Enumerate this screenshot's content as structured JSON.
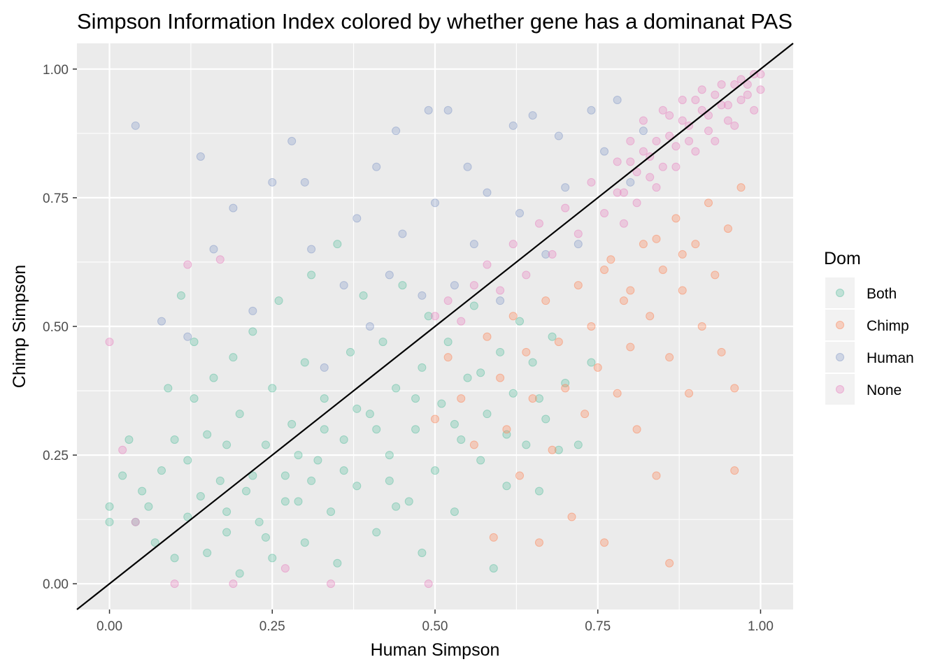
{
  "chart_data": {
    "type": "scatter",
    "title": "Simpson Information Index colored by whether gene has a dominanat PAS",
    "xlabel": "Human Simpson",
    "ylabel": "Chimp Simpson",
    "xlim": [
      -0.05,
      1.05
    ],
    "ylim": [
      -0.05,
      1.05
    ],
    "x_ticks": [
      "0.00",
      "0.25",
      "0.50",
      "0.75",
      "1.00"
    ],
    "y_ticks": [
      "0.00",
      "0.25",
      "0.50",
      "0.75",
      "1.00"
    ],
    "grid": true,
    "background": "#EBEBEB",
    "reference_line": {
      "type": "identity",
      "slope": 1,
      "intercept": 0,
      "color": "#000000"
    },
    "point_alpha": 0.35,
    "legend": {
      "title": "Dom",
      "position": "right",
      "entries": [
        {
          "name": "Both",
          "color": "#66C2A5"
        },
        {
          "name": "Chimp",
          "color": "#FC8D62"
        },
        {
          "name": "Human",
          "color": "#8DA0CB"
        },
        {
          "name": "None",
          "color": "#E78AC3"
        }
      ]
    },
    "series": [
      {
        "name": "Both",
        "color": "#66C2A5",
        "points": [
          [
            0.0,
            0.15
          ],
          [
            0.0,
            0.12
          ],
          [
            0.02,
            0.21
          ],
          [
            0.03,
            0.28
          ],
          [
            0.04,
            0.12
          ],
          [
            0.05,
            0.18
          ],
          [
            0.06,
            0.15
          ],
          [
            0.07,
            0.08
          ],
          [
            0.08,
            0.22
          ],
          [
            0.09,
            0.38
          ],
          [
            0.1,
            0.28
          ],
          [
            0.1,
            0.05
          ],
          [
            0.11,
            0.56
          ],
          [
            0.12,
            0.13
          ],
          [
            0.13,
            0.36
          ],
          [
            0.13,
            0.47
          ],
          [
            0.14,
            0.17
          ],
          [
            0.15,
            0.06
          ],
          [
            0.16,
            0.4
          ],
          [
            0.17,
            0.2
          ],
          [
            0.18,
            0.1
          ],
          [
            0.18,
            0.27
          ],
          [
            0.19,
            0.44
          ],
          [
            0.2,
            0.33
          ],
          [
            0.2,
            0.02
          ],
          [
            0.21,
            0.18
          ],
          [
            0.22,
            0.49
          ],
          [
            0.23,
            0.12
          ],
          [
            0.24,
            0.27
          ],
          [
            0.25,
            0.38
          ],
          [
            0.25,
            0.05
          ],
          [
            0.26,
            0.55
          ],
          [
            0.27,
            0.21
          ],
          [
            0.28,
            0.31
          ],
          [
            0.29,
            0.16
          ],
          [
            0.3,
            0.08
          ],
          [
            0.3,
            0.43
          ],
          [
            0.31,
            0.6
          ],
          [
            0.32,
            0.24
          ],
          [
            0.33,
            0.36
          ],
          [
            0.34,
            0.14
          ],
          [
            0.35,
            0.04
          ],
          [
            0.35,
            0.66
          ],
          [
            0.36,
            0.28
          ],
          [
            0.37,
            0.45
          ],
          [
            0.38,
            0.19
          ],
          [
            0.39,
            0.56
          ],
          [
            0.4,
            0.33
          ],
          [
            0.41,
            0.1
          ],
          [
            0.42,
            0.47
          ],
          [
            0.43,
            0.25
          ],
          [
            0.44,
            0.38
          ],
          [
            0.45,
            0.58
          ],
          [
            0.46,
            0.16
          ],
          [
            0.47,
            0.3
          ],
          [
            0.48,
            0.06
          ],
          [
            0.48,
            0.42
          ],
          [
            0.49,
            0.52
          ],
          [
            0.5,
            0.22
          ],
          [
            0.51,
            0.35
          ],
          [
            0.52,
            0.47
          ],
          [
            0.53,
            0.14
          ],
          [
            0.54,
            0.28
          ],
          [
            0.55,
            0.4
          ],
          [
            0.56,
            0.54
          ],
          [
            0.57,
            0.24
          ],
          [
            0.58,
            0.33
          ],
          [
            0.59,
            0.03
          ],
          [
            0.6,
            0.45
          ],
          [
            0.61,
            0.19
          ],
          [
            0.62,
            0.37
          ],
          [
            0.63,
            0.51
          ],
          [
            0.64,
            0.27
          ],
          [
            0.65,
            0.43
          ],
          [
            0.66,
            0.18
          ],
          [
            0.67,
            0.32
          ],
          [
            0.68,
            0.48
          ],
          [
            0.7,
            0.39
          ],
          [
            0.72,
            0.27
          ],
          [
            0.74,
            0.43
          ],
          [
            0.12,
            0.24
          ],
          [
            0.15,
            0.29
          ],
          [
            0.22,
            0.21
          ],
          [
            0.27,
            0.16
          ],
          [
            0.31,
            0.2
          ],
          [
            0.36,
            0.22
          ],
          [
            0.41,
            0.3
          ],
          [
            0.44,
            0.15
          ],
          [
            0.47,
            0.36
          ],
          [
            0.53,
            0.31
          ],
          [
            0.57,
            0.41
          ],
          [
            0.61,
            0.29
          ],
          [
            0.66,
            0.36
          ],
          [
            0.69,
            0.26
          ],
          [
            0.18,
            0.14
          ],
          [
            0.24,
            0.09
          ],
          [
            0.29,
            0.25
          ],
          [
            0.33,
            0.3
          ],
          [
            0.38,
            0.34
          ],
          [
            0.43,
            0.2
          ]
        ]
      },
      {
        "name": "Chimp",
        "color": "#FC8D62",
        "points": [
          [
            0.5,
            0.32
          ],
          [
            0.52,
            0.44
          ],
          [
            0.54,
            0.36
          ],
          [
            0.56,
            0.27
          ],
          [
            0.58,
            0.48
          ],
          [
            0.59,
            0.09
          ],
          [
            0.6,
            0.4
          ],
          [
            0.61,
            0.3
          ],
          [
            0.62,
            0.52
          ],
          [
            0.63,
            0.21
          ],
          [
            0.64,
            0.45
          ],
          [
            0.65,
            0.36
          ],
          [
            0.66,
            0.08
          ],
          [
            0.67,
            0.55
          ],
          [
            0.68,
            0.26
          ],
          [
            0.69,
            0.47
          ],
          [
            0.7,
            0.38
          ],
          [
            0.71,
            0.13
          ],
          [
            0.72,
            0.58
          ],
          [
            0.73,
            0.33
          ],
          [
            0.74,
            0.5
          ],
          [
            0.75,
            0.42
          ],
          [
            0.76,
            0.08
          ],
          [
            0.77,
            0.63
          ],
          [
            0.78,
            0.37
          ],
          [
            0.79,
            0.55
          ],
          [
            0.8,
            0.46
          ],
          [
            0.81,
            0.3
          ],
          [
            0.82,
            0.66
          ],
          [
            0.83,
            0.52
          ],
          [
            0.84,
            0.21
          ],
          [
            0.85,
            0.61
          ],
          [
            0.86,
            0.04
          ],
          [
            0.86,
            0.44
          ],
          [
            0.87,
            0.71
          ],
          [
            0.88,
            0.57
          ],
          [
            0.89,
            0.37
          ],
          [
            0.9,
            0.66
          ],
          [
            0.91,
            0.5
          ],
          [
            0.92,
            0.74
          ],
          [
            0.93,
            0.6
          ],
          [
            0.94,
            0.45
          ],
          [
            0.95,
            0.69
          ],
          [
            0.96,
            0.22
          ],
          [
            0.96,
            0.38
          ],
          [
            0.97,
            0.77
          ],
          [
            0.76,
            0.61
          ],
          [
            0.8,
            0.57
          ],
          [
            0.84,
            0.67
          ],
          [
            0.88,
            0.64
          ]
        ]
      },
      {
        "name": "Human",
        "color": "#8DA0CB",
        "points": [
          [
            0.04,
            0.89
          ],
          [
            0.08,
            0.51
          ],
          [
            0.12,
            0.48
          ],
          [
            0.14,
            0.83
          ],
          [
            0.16,
            0.65
          ],
          [
            0.19,
            0.73
          ],
          [
            0.22,
            0.53
          ],
          [
            0.25,
            0.78
          ],
          [
            0.28,
            0.86
          ],
          [
            0.3,
            0.78
          ],
          [
            0.31,
            0.65
          ],
          [
            0.33,
            0.42
          ],
          [
            0.36,
            0.58
          ],
          [
            0.38,
            0.71
          ],
          [
            0.4,
            0.5
          ],
          [
            0.41,
            0.81
          ],
          [
            0.43,
            0.6
          ],
          [
            0.44,
            0.88
          ],
          [
            0.45,
            0.68
          ],
          [
            0.48,
            0.56
          ],
          [
            0.49,
            0.92
          ],
          [
            0.5,
            0.74
          ],
          [
            0.52,
            0.92
          ],
          [
            0.53,
            0.58
          ],
          [
            0.55,
            0.81
          ],
          [
            0.56,
            0.66
          ],
          [
            0.58,
            0.76
          ],
          [
            0.6,
            0.55
          ],
          [
            0.62,
            0.89
          ],
          [
            0.63,
            0.72
          ],
          [
            0.65,
            0.91
          ],
          [
            0.67,
            0.64
          ],
          [
            0.69,
            0.87
          ],
          [
            0.7,
            0.77
          ],
          [
            0.72,
            0.66
          ],
          [
            0.74,
            0.92
          ],
          [
            0.76,
            0.84
          ],
          [
            0.78,
            0.94
          ],
          [
            0.8,
            0.78
          ],
          [
            0.82,
            0.88
          ]
        ]
      },
      {
        "name": "None",
        "color": "#E78AC3",
        "points": [
          [
            0.0,
            0.47
          ],
          [
            0.02,
            0.26
          ],
          [
            0.04,
            0.12
          ],
          [
            0.1,
            0.0
          ],
          [
            0.12,
            0.62
          ],
          [
            0.17,
            0.63
          ],
          [
            0.19,
            0.0
          ],
          [
            0.27,
            0.03
          ],
          [
            0.34,
            0.0
          ],
          [
            0.49,
            0.0
          ],
          [
            0.5,
            0.52
          ],
          [
            0.52,
            0.55
          ],
          [
            0.54,
            0.51
          ],
          [
            0.56,
            0.58
          ],
          [
            0.58,
            0.62
          ],
          [
            0.6,
            0.57
          ],
          [
            0.62,
            0.66
          ],
          [
            0.64,
            0.6
          ],
          [
            0.66,
            0.7
          ],
          [
            0.68,
            0.64
          ],
          [
            0.7,
            0.73
          ],
          [
            0.72,
            0.68
          ],
          [
            0.74,
            0.78
          ],
          [
            0.76,
            0.72
          ],
          [
            0.78,
            0.82
          ],
          [
            0.79,
            0.76
          ],
          [
            0.8,
            0.86
          ],
          [
            0.81,
            0.8
          ],
          [
            0.82,
            0.9
          ],
          [
            0.83,
            0.83
          ],
          [
            0.84,
            0.77
          ],
          [
            0.85,
            0.92
          ],
          [
            0.86,
            0.87
          ],
          [
            0.87,
            0.81
          ],
          [
            0.88,
            0.94
          ],
          [
            0.89,
            0.89
          ],
          [
            0.9,
            0.84
          ],
          [
            0.91,
            0.96
          ],
          [
            0.92,
            0.91
          ],
          [
            0.93,
            0.86
          ],
          [
            0.94,
            0.97
          ],
          [
            0.95,
            0.93
          ],
          [
            0.96,
            0.89
          ],
          [
            0.97,
            0.98
          ],
          [
            0.98,
            0.95
          ],
          [
            0.99,
            0.92
          ],
          [
            1.0,
            0.99
          ],
          [
            1.0,
            0.96
          ],
          [
            0.99,
            0.99
          ],
          [
            0.98,
            0.97
          ],
          [
            0.97,
            0.94
          ],
          [
            0.96,
            0.97
          ],
          [
            0.95,
            0.9
          ],
          [
            0.94,
            0.93
          ],
          [
            0.93,
            0.95
          ],
          [
            0.92,
            0.88
          ],
          [
            0.91,
            0.92
          ],
          [
            0.9,
            0.94
          ],
          [
            0.89,
            0.86
          ],
          [
            0.88,
            0.9
          ],
          [
            0.87,
            0.85
          ],
          [
            0.86,
            0.91
          ],
          [
            0.85,
            0.81
          ],
          [
            0.84,
            0.86
          ],
          [
            0.83,
            0.79
          ],
          [
            0.82,
            0.84
          ],
          [
            0.81,
            0.74
          ],
          [
            0.8,
            0.82
          ],
          [
            0.79,
            0.7
          ],
          [
            0.78,
            0.76
          ]
        ]
      }
    ]
  }
}
